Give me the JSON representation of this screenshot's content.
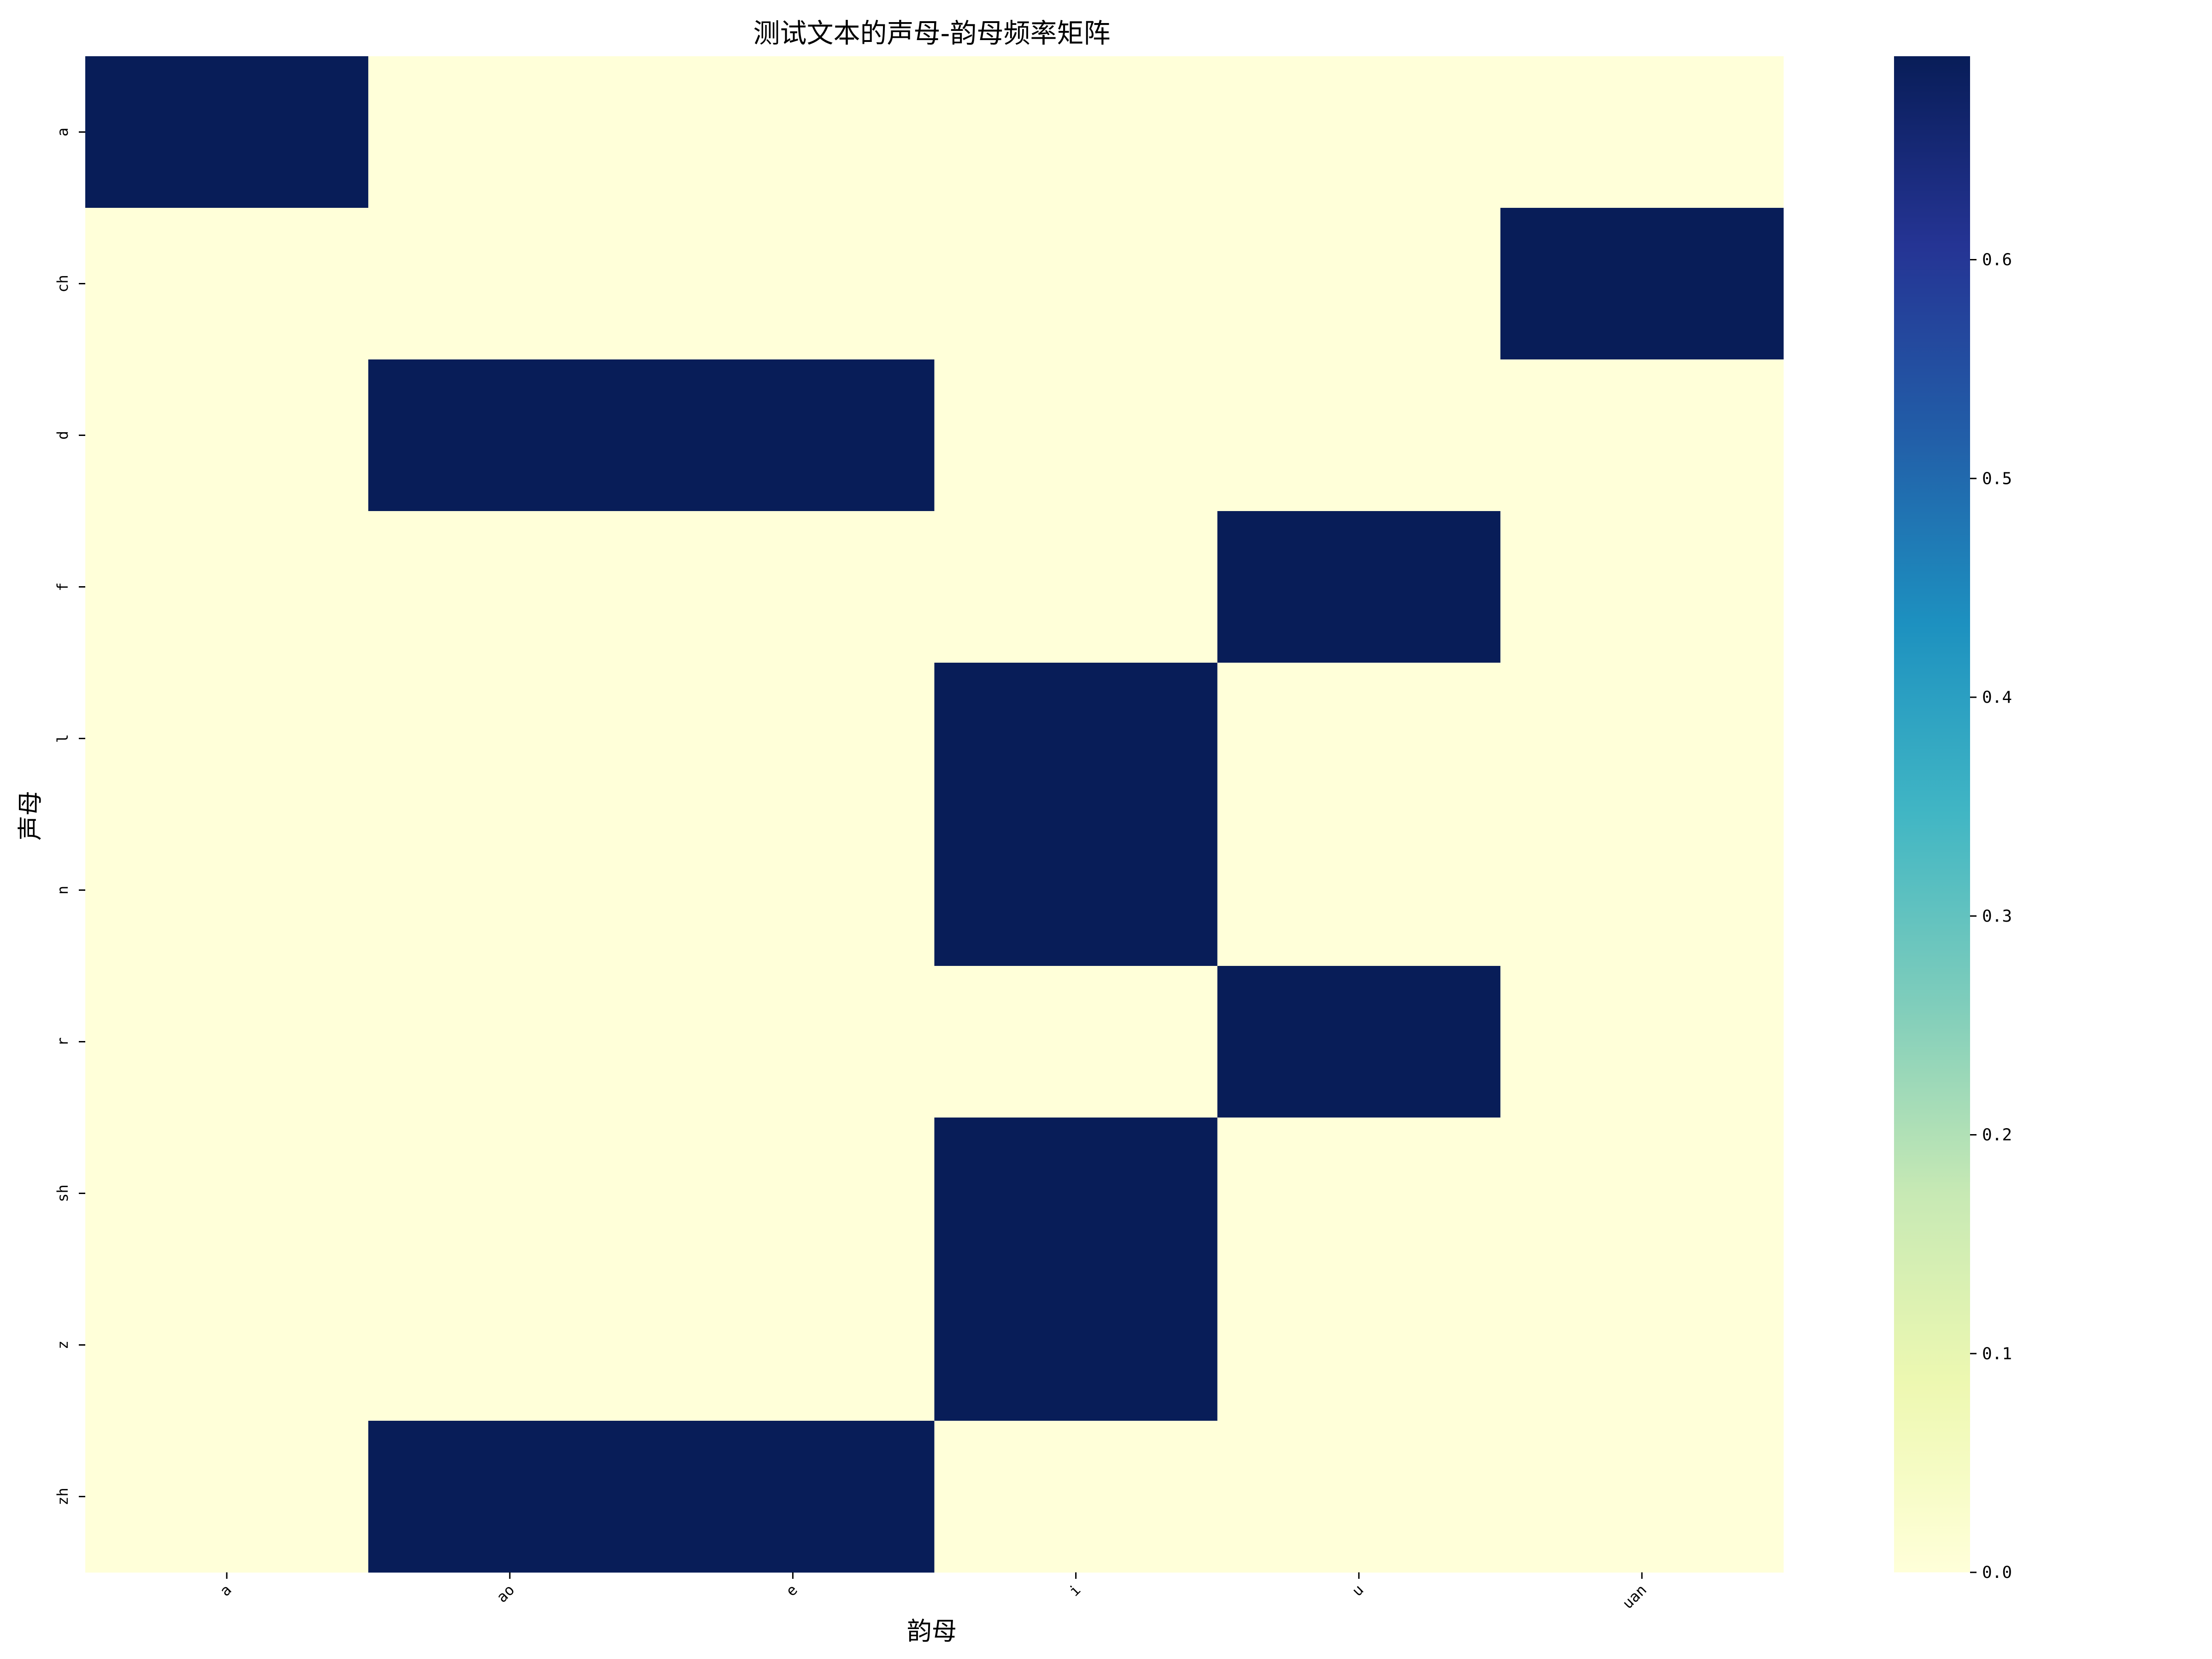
{
  "chart_data": {
    "type": "heatmap",
    "title": "测试文本的声母-韵母频率矩阵",
    "xlabel": "韵母",
    "ylabel": "声母",
    "x_categories": [
      "a",
      "ao",
      "e",
      "i",
      "u",
      "uan"
    ],
    "y_categories": [
      "a",
      "ch",
      "d",
      "f",
      "l",
      "n",
      "r",
      "sh",
      "z",
      "zh"
    ],
    "values": [
      [
        0.693,
        0,
        0,
        0,
        0,
        0
      ],
      [
        0,
        0,
        0,
        0,
        0,
        0.693
      ],
      [
        0,
        0.693,
        0.693,
        0,
        0,
        0
      ],
      [
        0,
        0,
        0,
        0,
        0.693,
        0
      ],
      [
        0,
        0,
        0,
        0.693,
        0,
        0
      ],
      [
        0,
        0,
        0,
        0.693,
        0,
        0
      ],
      [
        0,
        0,
        0,
        0,
        0.693,
        0
      ],
      [
        0,
        0,
        0,
        0.693,
        0,
        0
      ],
      [
        0,
        0,
        0,
        0.693,
        0,
        0
      ],
      [
        0,
        0.693,
        0.693,
        0,
        0,
        0
      ]
    ],
    "colorbar": {
      "min": 0.0,
      "max": 0.693,
      "ticks": [
        "0.0",
        "0.1",
        "0.2",
        "0.3",
        "0.4",
        "0.5",
        "0.6"
      ],
      "colormap": "YlGnBu",
      "low_color": "#ffffd9",
      "high_color": "#081d58"
    }
  }
}
